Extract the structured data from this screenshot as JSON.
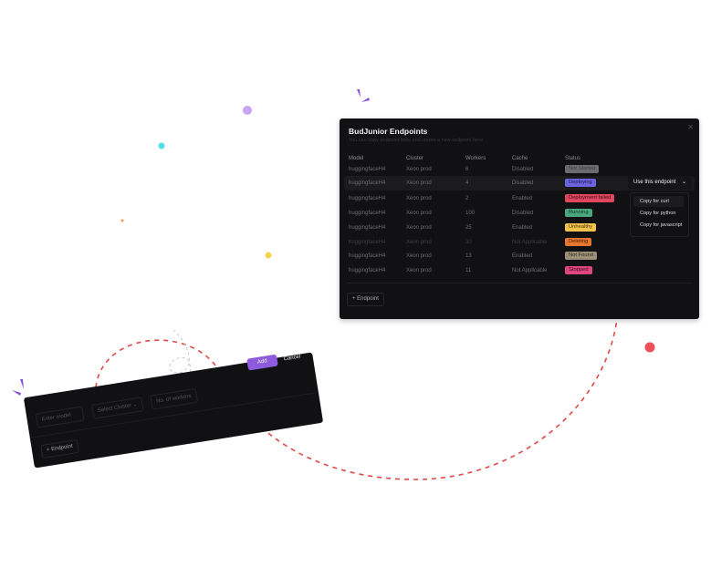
{
  "panel": {
    "title": "BudJunior Endpoints",
    "subtitle": "You can copy endpoint links and create a new endpoint here",
    "close_icon": "close-icon",
    "columns": [
      "Model",
      "Cluster",
      "Workers",
      "Cache",
      "Status"
    ],
    "rows": [
      {
        "model": "huggingfaceH4",
        "cluster": "Xeon prod",
        "workers": "6",
        "cache": "Disabled",
        "status": "Not Started",
        "bg": "#6b6b70",
        "fg": "#3a3a3e"
      },
      {
        "model": "huggingfaceH4",
        "cluster": "Xeon prod",
        "workers": "4",
        "cache": "Disabled",
        "status": "Deploying",
        "bg": "#6c63e0",
        "fg": "#1c1a40"
      },
      {
        "model": "huggingfaceH4",
        "cluster": "Xeon prod",
        "workers": "2",
        "cache": "Enabled",
        "status": "Deployment failed",
        "bg": "#e0475e",
        "fg": "#3a0d14"
      },
      {
        "model": "huggingfaceH4",
        "cluster": "Xeon prod",
        "workers": "100",
        "cache": "Disabled",
        "status": "Running",
        "bg": "#4aa67e",
        "fg": "#123324"
      },
      {
        "model": "huggingfaceH4",
        "cluster": "Xeon prod",
        "workers": "25",
        "cache": "Enabled",
        "status": "Unhealthy",
        "bg": "#f2c14e",
        "fg": "#4a3508"
      },
      {
        "model": "huggingfaceH4",
        "cluster": "Xeon prod",
        "workers": "30",
        "cache": "Not Applicable",
        "status": "Deleting",
        "bg": "#e7772f",
        "fg": "#3f1a04"
      },
      {
        "model": "huggingfaceH4",
        "cluster": "Xeon prod",
        "workers": "13",
        "cache": "Enabled",
        "status": "Not Found",
        "bg": "#9c8f78",
        "fg": "#2f2a20"
      },
      {
        "model": "huggingfaceH4",
        "cluster": "Xeon prod",
        "workers": "11",
        "cache": "Not Applicable",
        "status": "Stopped",
        "bg": "#e0457f",
        "fg": "#3a0b1f"
      }
    ],
    "use_endpoint": "Use this endpoint",
    "menu": [
      "Copy for curl",
      "Copy for python",
      "Copy for javascript"
    ],
    "add_endpoint": "+ Endpoint"
  },
  "form": {
    "model_placeholder": "Enter model",
    "cluster_placeholder": "Select Cluster",
    "workers_placeholder": "No. of workers",
    "add": "Add",
    "cancel": "Cancel",
    "add_endpoint": "+ Endpoint"
  }
}
